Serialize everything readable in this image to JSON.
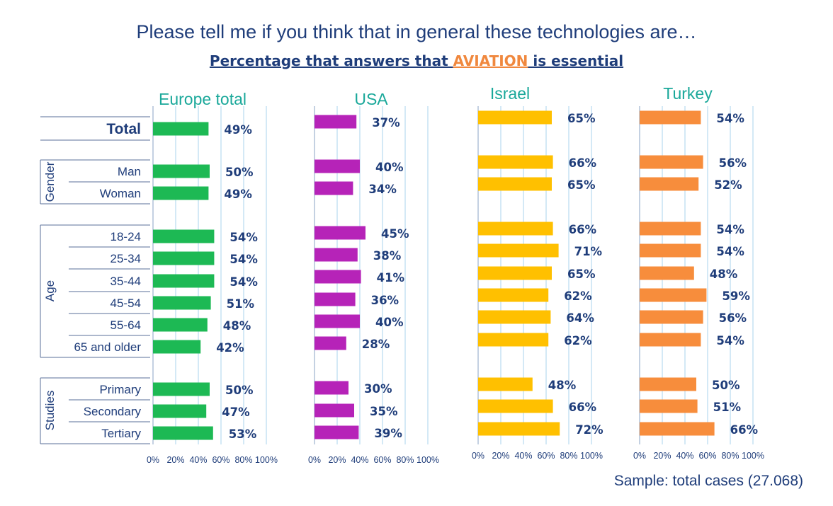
{
  "title": "Please tell me if you think that in general these technologies are…",
  "subtitle": {
    "pre": "Percentage that answers that ",
    "highlight": "AVIATION",
    "post": " is essential"
  },
  "sample_note": "Sample: total cases (27.068)",
  "colors": {
    "europe": "#1db954",
    "usa": "#b623b8",
    "israel": "#ffc000",
    "turkey": "#f78d3c",
    "panel_title": "#1aa89a",
    "text": "#1f3d7a",
    "grid": "#a9d3ee"
  },
  "chart_data": {
    "type": "bar",
    "orientation": "horizontal",
    "categories": [
      "Total",
      "Man",
      "Woman",
      "18-24",
      "25-34",
      "35-44",
      "45-54",
      "55-64",
      "65 and older",
      "Primary",
      "Secondary",
      "Tertiary"
    ],
    "groups": [
      {
        "label": "Gender",
        "categories": [
          "Man",
          "Woman"
        ]
      },
      {
        "label": "Age",
        "categories": [
          "18-24",
          "25-34",
          "35-44",
          "45-54",
          "55-64",
          "65 and older"
        ]
      },
      {
        "label": "Studies",
        "categories": [
          "Primary",
          "Secondary",
          "Tertiary"
        ]
      }
    ],
    "x_ticks": [
      "0%",
      "20%",
      "40%",
      "60%",
      "80%",
      "100%"
    ],
    "xlim": [
      0,
      100
    ],
    "grid": true,
    "series": [
      {
        "name": "Europe total",
        "color_key": "europe",
        "values": [
          49,
          50,
          49,
          54,
          54,
          54,
          51,
          48,
          42,
          50,
          47,
          53
        ]
      },
      {
        "name": "USA",
        "color_key": "usa",
        "values": [
          37,
          40,
          34,
          45,
          38,
          41,
          36,
          40,
          28,
          30,
          35,
          39
        ]
      },
      {
        "name": "Israel",
        "color_key": "israel",
        "values": [
          65,
          66,
          65,
          66,
          71,
          65,
          62,
          64,
          62,
          48,
          66,
          72
        ]
      },
      {
        "name": "Turkey",
        "color_key": "turkey",
        "values": [
          54,
          56,
          52,
          54,
          54,
          48,
          59,
          56,
          54,
          50,
          51,
          66
        ]
      }
    ]
  }
}
